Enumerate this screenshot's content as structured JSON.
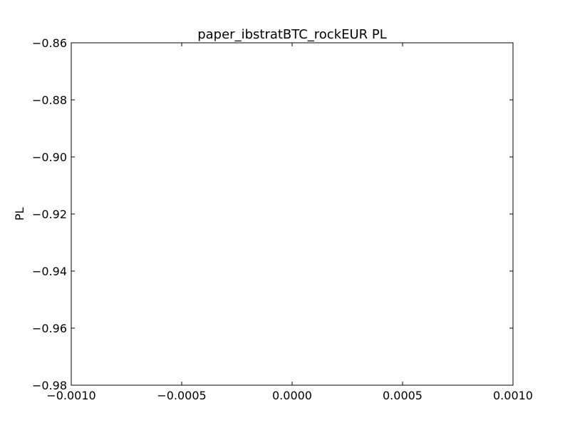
{
  "chart_data": {
    "type": "line",
    "title": "paper_ibstratBTC_rockEUR PL",
    "xlabel": "",
    "ylabel": "PL",
    "xlim": [
      -0.001,
      0.001
    ],
    "ylim": [
      -0.98,
      -0.86
    ],
    "x_ticks": [
      -0.001,
      -0.0005,
      0.0,
      0.0005,
      0.001
    ],
    "x_tick_labels": [
      "−0.0010",
      "−0.0005",
      "0.0000",
      "0.0005",
      "0.0010"
    ],
    "y_ticks": [
      -0.86,
      -0.88,
      -0.9,
      -0.92,
      -0.94,
      -0.96,
      -0.98
    ],
    "y_tick_labels": [
      "−0.86",
      "−0.88",
      "−0.90",
      "−0.92",
      "−0.94",
      "−0.96",
      "−0.98"
    ],
    "grid": false,
    "series": []
  },
  "colors": {
    "axes": "#000000",
    "background": "#ffffff"
  }
}
